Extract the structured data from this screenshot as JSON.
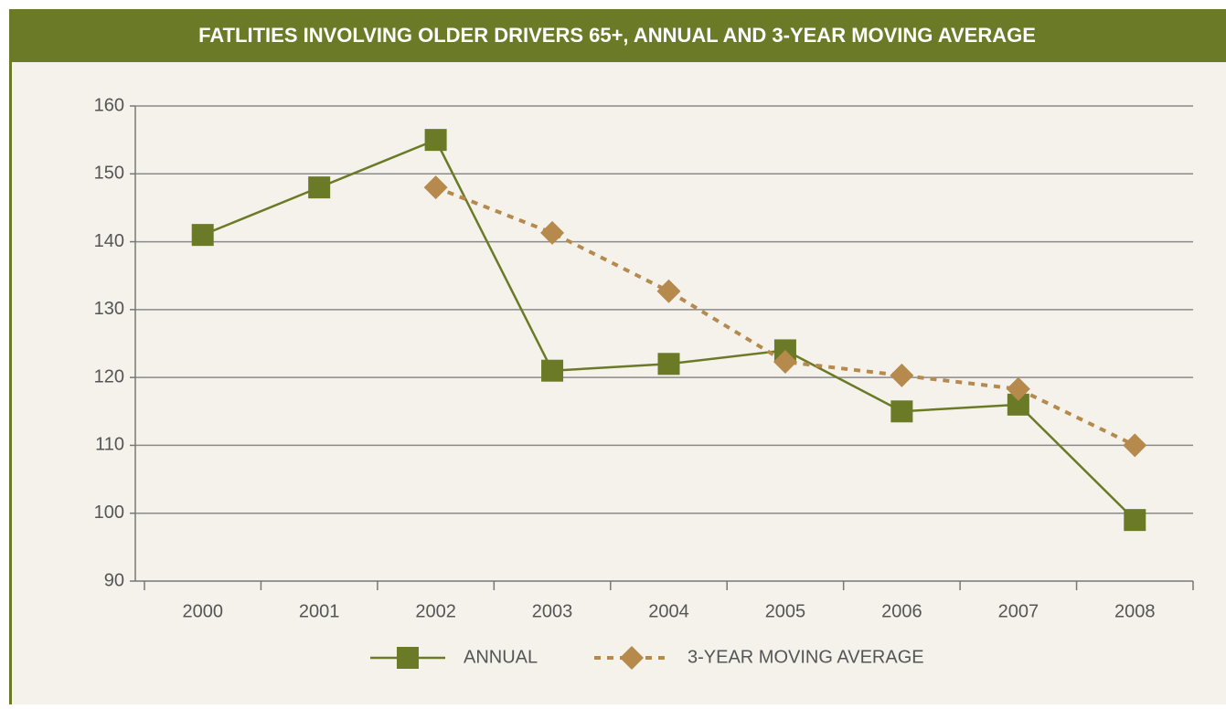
{
  "chart_data": {
    "type": "line",
    "title": "FATLITIES INVOLVING OLDER DRIVERS 65+, ANNUAL AND 3-YEAR MOVING AVERAGE",
    "categories": [
      "2000",
      "2001",
      "2002",
      "2003",
      "2004",
      "2005",
      "2006",
      "2007",
      "2008"
    ],
    "series": [
      {
        "name": "ANNUAL",
        "color": "#6b7a26",
        "marker": "square",
        "dashed": false,
        "values": [
          141,
          148,
          155,
          121,
          122,
          124,
          115,
          116,
          99
        ]
      },
      {
        "name": "3-YEAR MOVING AVERAGE",
        "color": "#b58a4c",
        "marker": "diamond",
        "dashed": true,
        "values": [
          null,
          null,
          148,
          141.3,
          132.7,
          122.3,
          120.3,
          118.3,
          110
        ]
      }
    ],
    "ylim": [
      90,
      160
    ],
    "yticks": [
      90,
      100,
      110,
      120,
      130,
      140,
      150,
      160
    ],
    "grid": true,
    "legend": "bottom"
  }
}
